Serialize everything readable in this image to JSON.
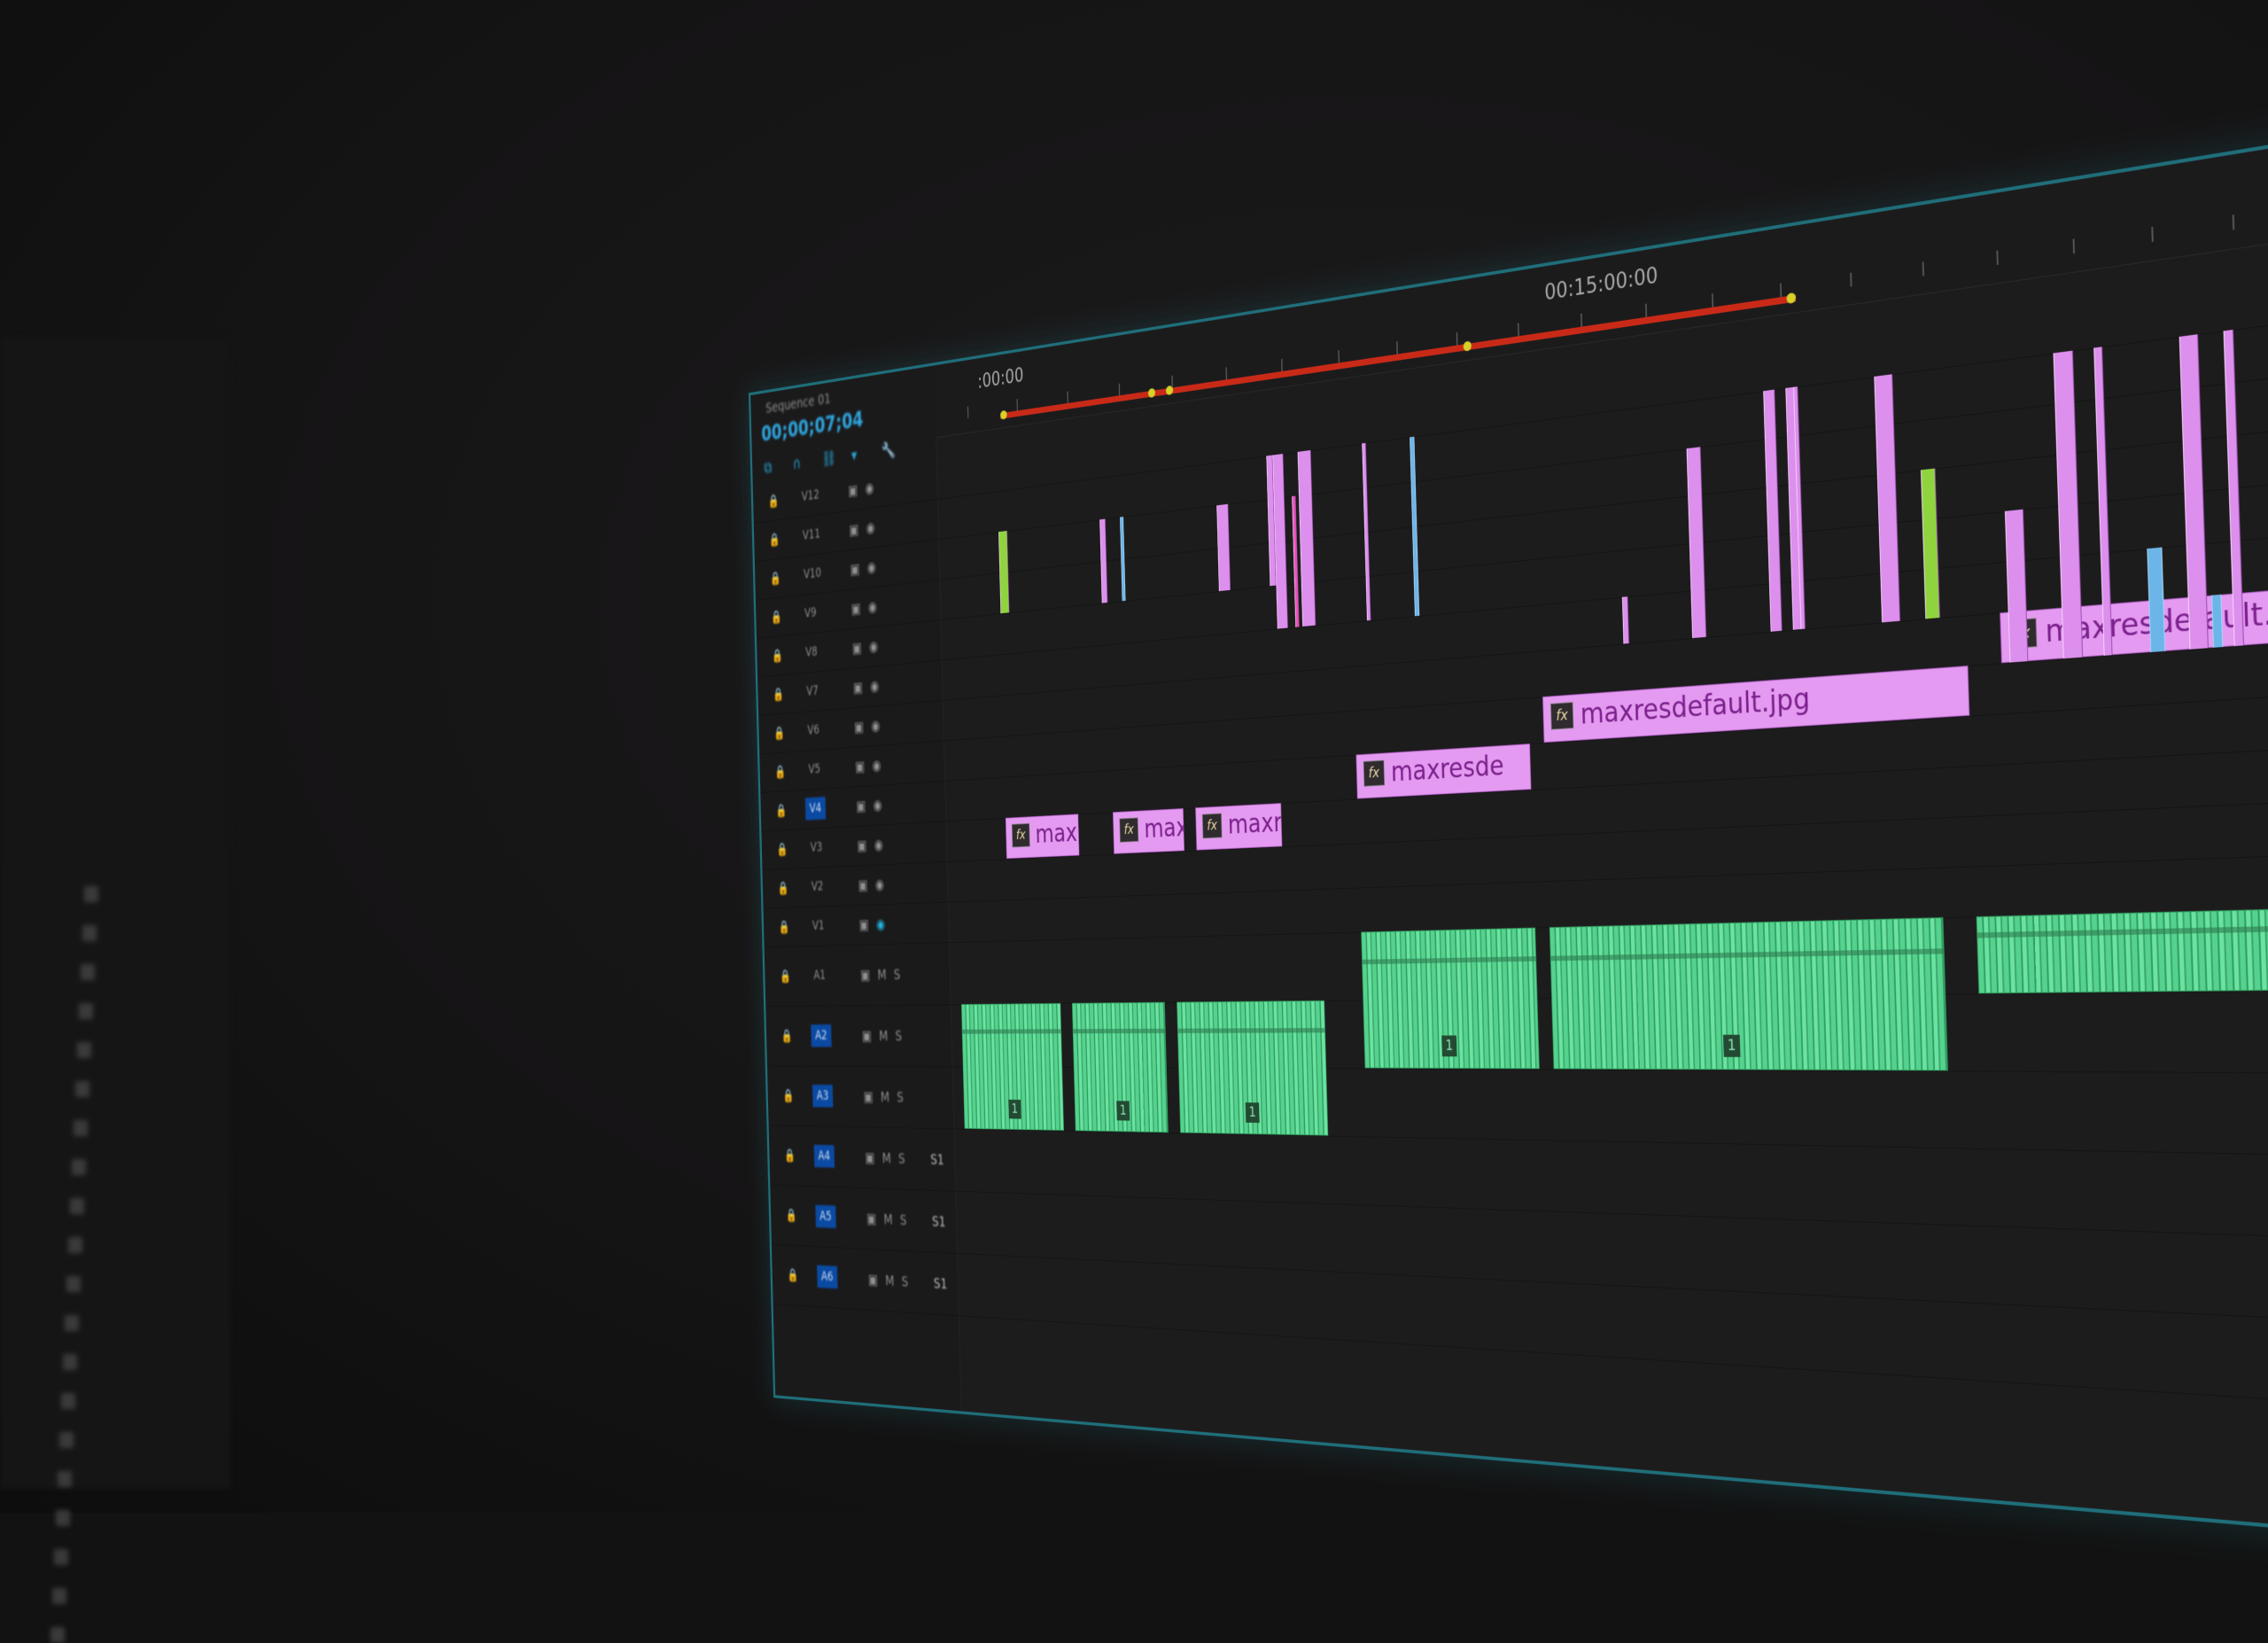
{
  "sequence": {
    "name": "Sequence 01",
    "timecode": "00;00;07;04"
  },
  "ruler": {
    "labels": [
      ":00:00",
      "00:15:00:00"
    ]
  },
  "colors": {
    "video_clip": "#e49af0",
    "audio_clip": "#55d28d",
    "work_area_bar": "#c92a18",
    "track_target": "#0b4aa3",
    "panel_border": "#1f6f7a",
    "background": "#1d1c1d"
  },
  "tracks": {
    "video": [
      {
        "label": "V12",
        "targeted": false
      },
      {
        "label": "V11",
        "targeted": false
      },
      {
        "label": "V10",
        "targeted": false
      },
      {
        "label": "V9",
        "targeted": false
      },
      {
        "label": "V8",
        "targeted": false
      },
      {
        "label": "V7",
        "targeted": false
      },
      {
        "label": "V6",
        "targeted": false
      },
      {
        "label": "V5",
        "targeted": false
      },
      {
        "label": "V4",
        "targeted": true
      },
      {
        "label": "V3",
        "targeted": false
      },
      {
        "label": "V2",
        "targeted": false
      },
      {
        "label": "V1",
        "targeted": false,
        "eye_on": true
      }
    ],
    "audio": [
      {
        "label": "A1",
        "targeted": false,
        "m": "M",
        "s": "S",
        "vol": ""
      },
      {
        "label": "A2",
        "targeted": true,
        "m": "M",
        "s": "S",
        "vol": ""
      },
      {
        "label": "A3",
        "targeted": true,
        "m": "M",
        "s": "S",
        "vol": ""
      },
      {
        "label": "A4",
        "targeted": true,
        "m": "M",
        "s": "S",
        "vol": "S1"
      },
      {
        "label": "A5",
        "targeted": true,
        "m": "M",
        "s": "S",
        "vol": "S1"
      },
      {
        "label": "A6",
        "targeted": true,
        "m": "M",
        "s": "S",
        "vol": "S1"
      }
    ]
  },
  "video_clips": [
    {
      "name": "max",
      "fx": "fx"
    },
    {
      "name": "maxi",
      "fx": "fx"
    },
    {
      "name": "maxre",
      "fx": "fx"
    },
    {
      "name": "maxresde",
      "fx": "fx"
    },
    {
      "name": "maxresdefault.jpg",
      "fx": "fx"
    },
    {
      "name": "maxresdefault.jpg",
      "fx": "fx"
    }
  ],
  "audio_clip_markers": [
    "1",
    "1",
    "1",
    "1",
    "1"
  ]
}
